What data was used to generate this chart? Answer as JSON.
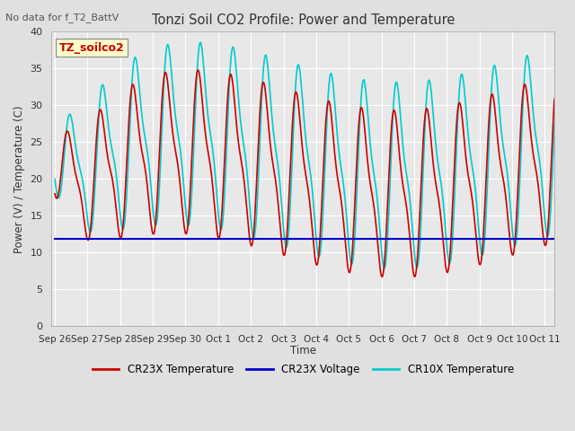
{
  "title": "Tonzi Soil CO2 Profile: Power and Temperature",
  "top_left_note": "No data for f_T2_BattV",
  "ylabel": "Power (V) / Temperature (C)",
  "xlabel": "Time",
  "ylim": [
    0,
    40
  ],
  "yticks": [
    0,
    5,
    10,
    15,
    20,
    25,
    30,
    35,
    40
  ],
  "legend_label_box": "TZ_soilco2",
  "series": {
    "cr23x_temp": {
      "color": "#cc0000",
      "label": "CR23X Temperature",
      "lw": 1.2
    },
    "cr23x_voltage": {
      "color": "#0000cc",
      "label": "CR23X Voltage",
      "lw": 1.5
    },
    "cr10x_temp": {
      "color": "#00cccc",
      "label": "CR10X Temperature",
      "lw": 1.2
    }
  },
  "background_color": "#e8e8e8",
  "fig_background": "#e0e0e0",
  "grid_color": "#ffffff",
  "voltage_value": 11.9,
  "day_labels": [
    "Sep 26",
    "Sep 27",
    "Sep 28",
    "Sep 29",
    "Sep 30",
    "Oct 1",
    "Oct 2",
    "Oct 3",
    "Oct 4",
    "Oct 5",
    "Oct 6",
    "Oct 7",
    "Oct 8",
    "Oct 9",
    "Oct 10",
    "Oct 11"
  ],
  "day_offsets": [
    0,
    1,
    2,
    3,
    4,
    5,
    6,
    7,
    8,
    9,
    10,
    11,
    12,
    13,
    14,
    15
  ]
}
